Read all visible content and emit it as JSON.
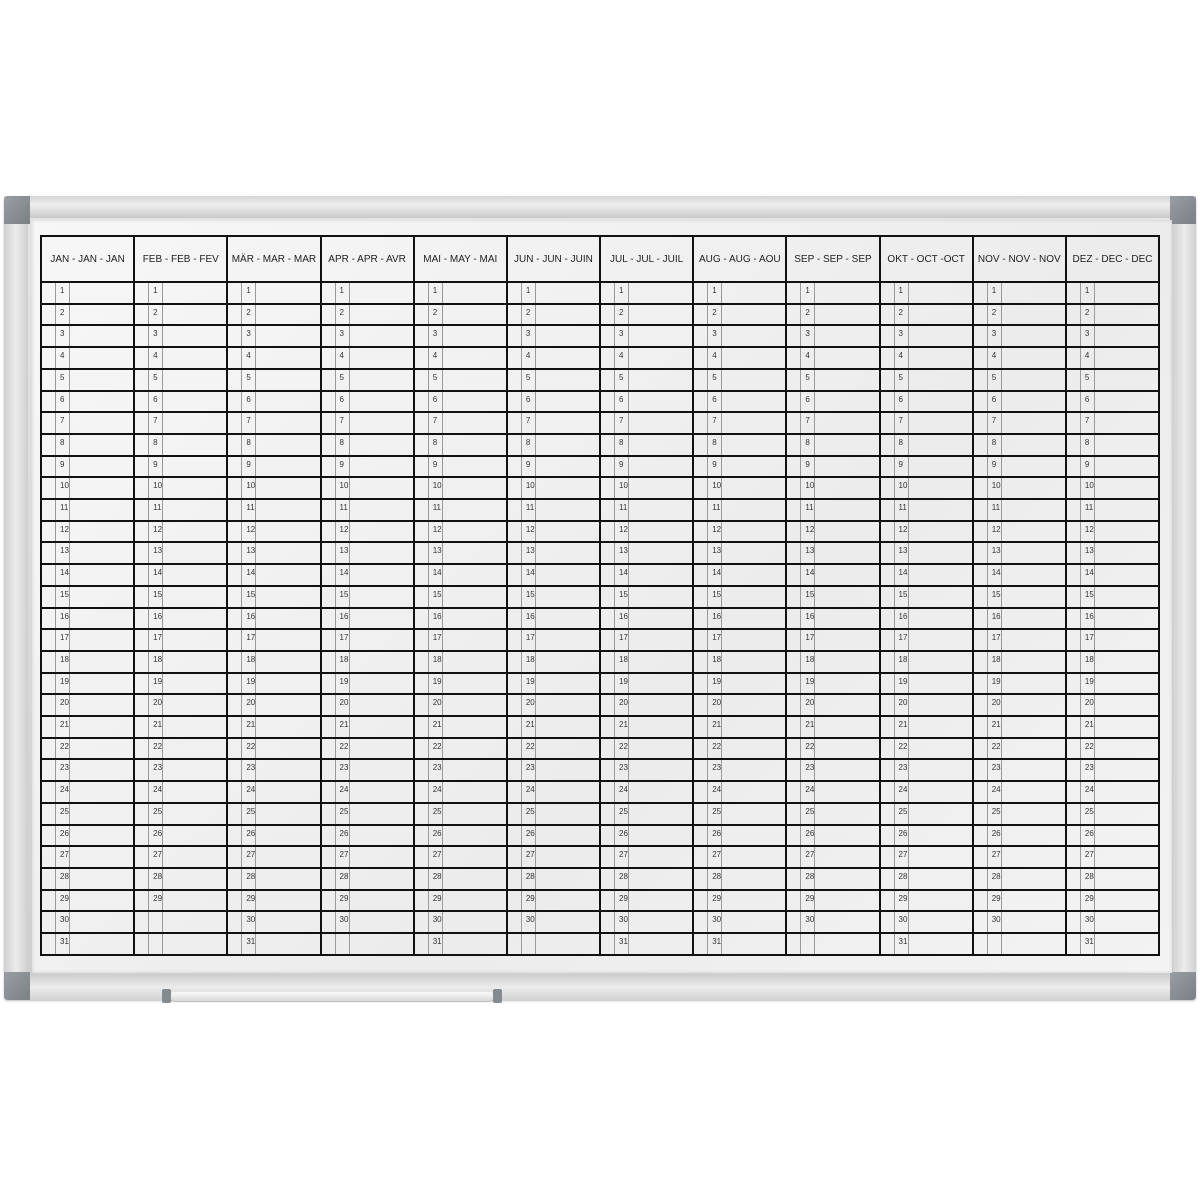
{
  "board": {
    "frame_color": "#d8d8d8",
    "corner_color": "#868b91",
    "line_color": "#111111",
    "months": [
      {
        "label": "JAN - JAN - JAN",
        "days": 31
      },
      {
        "label": "FEB - FEB - FEV",
        "days": 29
      },
      {
        "label": "MÄR - MAR - MAR",
        "days": 31
      },
      {
        "label": "APR - APR - AVR",
        "days": 30
      },
      {
        "label": "MAI - MAY - MAI",
        "days": 31
      },
      {
        "label": "JUN - JUN - JUIN",
        "days": 30
      },
      {
        "label": "JUL - JUL - JUIL",
        "days": 31
      },
      {
        "label": "AUG - AUG - AOU",
        "days": 31
      },
      {
        "label": "SEP - SEP - SEP",
        "days": 30
      },
      {
        "label": "OKT - OCT -OCT",
        "days": 31
      },
      {
        "label": "NOV - NOV - NOV",
        "days": 30
      },
      {
        "label": "DEZ - DEC - DEC",
        "days": 31
      }
    ]
  }
}
